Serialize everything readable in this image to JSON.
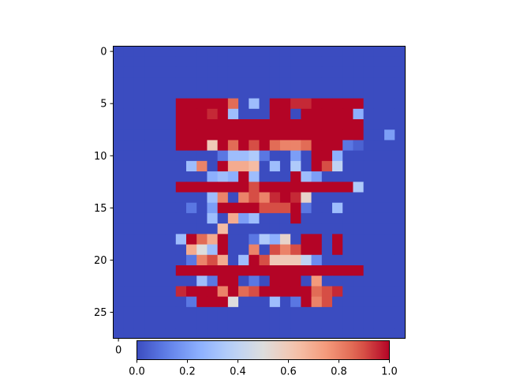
{
  "chart_data": [
    {
      "type": "heatmap",
      "title": "",
      "xlabel": "",
      "ylabel": "",
      "rows": 28,
      "cols": 28,
      "xlim": [
        -0.5,
        27.5
      ],
      "ylim": [
        27.5,
        -0.5
      ],
      "y_ticks": [
        0,
        5,
        10,
        15,
        20,
        25
      ],
      "y_tick_labels": [
        "0",
        "5",
        "10",
        "15",
        "20",
        "25"
      ],
      "x_ticks": [
        0
      ],
      "x_tick_labels": [
        "0"
      ],
      "colormap": "coolwarm",
      "vmin": 0.0,
      "vmax": 1.0,
      "grid": false,
      "values": [
        [
          0,
          0,
          0,
          0,
          0,
          0,
          0,
          0,
          0,
          0,
          0,
          0,
          0,
          0,
          0,
          0,
          0,
          0,
          0,
          0,
          0,
          0,
          0,
          0,
          0,
          0,
          0,
          0
        ],
        [
          0,
          0,
          0,
          0,
          0,
          0,
          0,
          0,
          0,
          0,
          0,
          0,
          0,
          0,
          0,
          0,
          0,
          0,
          0,
          0,
          0,
          0,
          0,
          0,
          0,
          0,
          0,
          0
        ],
        [
          0,
          0,
          0,
          0,
          0,
          0,
          0,
          0,
          0,
          0,
          0,
          0,
          0,
          0,
          0,
          0,
          0,
          0,
          0,
          0,
          0,
          0,
          0,
          0,
          0,
          0,
          0,
          0
        ],
        [
          0,
          0,
          0,
          0,
          0,
          0,
          0,
          0,
          0,
          0,
          0,
          0,
          0,
          0,
          0,
          0,
          0,
          0,
          0,
          0,
          0,
          0,
          0,
          0,
          0,
          0,
          0,
          0
        ],
        [
          0,
          0,
          0,
          0,
          0,
          0,
          0,
          0,
          0,
          0,
          0,
          0,
          0,
          0,
          0,
          0,
          0,
          0,
          0,
          0,
          0,
          0,
          0,
          0,
          0,
          0,
          0,
          0
        ],
        [
          0,
          0,
          0,
          0,
          0,
          0,
          1,
          1,
          1,
          1,
          1,
          0.85,
          0,
          0.3,
          0,
          1,
          1,
          0.95,
          0.95,
          1,
          1,
          1,
          1,
          1,
          0,
          0,
          0,
          0
        ],
        [
          0,
          0,
          0,
          0,
          0,
          0,
          1,
          1,
          1,
          0.95,
          1,
          0.3,
          0,
          0,
          0,
          1,
          1,
          0,
          1,
          1,
          1,
          1,
          1,
          0.25,
          0,
          0,
          0,
          0
        ],
        [
          0,
          0,
          0,
          0,
          0,
          0,
          1,
          1,
          1,
          1,
          1,
          1,
          1,
          1,
          1,
          1,
          1,
          1,
          1,
          1,
          1,
          1,
          1,
          1,
          0,
          0,
          0,
          0
        ],
        [
          0,
          0,
          0,
          0,
          0,
          0,
          1,
          1,
          1,
          1,
          1,
          1,
          1,
          1,
          1,
          1,
          1,
          1,
          1,
          1,
          1,
          1,
          1,
          1,
          0,
          0,
          0.2,
          0
        ],
        [
          0,
          0,
          0,
          0,
          0,
          0,
          1,
          1,
          1,
          0.6,
          1,
          0.85,
          1,
          0.9,
          1,
          0.85,
          0.8,
          0.8,
          0.85,
          1,
          1,
          1,
          0.1,
          0.05,
          0,
          0,
          0,
          0
        ],
        [
          0,
          0,
          0,
          0,
          0,
          0,
          0,
          0,
          0,
          0,
          0.1,
          0.3,
          0.3,
          0.35,
          0.1,
          0,
          0,
          0.2,
          0,
          1,
          1,
          0.25,
          0,
          0,
          0,
          0,
          0,
          0
        ],
        [
          0,
          0,
          0,
          0,
          0,
          0,
          0,
          0.3,
          0.8,
          0,
          1,
          0.7,
          0.7,
          0.65,
          0,
          0.3,
          0,
          0.35,
          0,
          1,
          0.9,
          0.4,
          0,
          0,
          0,
          0,
          0,
          0
        ],
        [
          0,
          0,
          0,
          0,
          0,
          0,
          0,
          0,
          0,
          0.25,
          0.3,
          0.25,
          1,
          0.3,
          0,
          0,
          0,
          1,
          0.3,
          0.2,
          0,
          0,
          0,
          0,
          0,
          0,
          0,
          0
        ],
        [
          0,
          0,
          0,
          0,
          0,
          0,
          1,
          1,
          1,
          1,
          1,
          1,
          1,
          0.9,
          1,
          1,
          1,
          1,
          1,
          1,
          1,
          1,
          1,
          0.35,
          0,
          0,
          0,
          0
        ],
        [
          0,
          0,
          0,
          0,
          0,
          0,
          0,
          0,
          0,
          0.3,
          0.8,
          0,
          0.8,
          0.9,
          0.8,
          0.95,
          1,
          0.95,
          0.55,
          0,
          0,
          0,
          0,
          0,
          0,
          0,
          0,
          0
        ],
        [
          0,
          0,
          0,
          0,
          0,
          0,
          0,
          0.1,
          0,
          0.2,
          1,
          1,
          1,
          1,
          0.9,
          0.9,
          0.9,
          1,
          0.1,
          0,
          0,
          0.3,
          0,
          0,
          0,
          0,
          0,
          0
        ],
        [
          0,
          0,
          0,
          0,
          0,
          0,
          0,
          0,
          0,
          0.3,
          0,
          0.7,
          0.2,
          0.3,
          0,
          0,
          0,
          1,
          0,
          0,
          0,
          0,
          0,
          0,
          0,
          0,
          0,
          0
        ],
        [
          0,
          0,
          0,
          0,
          0,
          0,
          0,
          0,
          0,
          0,
          0.65,
          0,
          0,
          0,
          0,
          0,
          0,
          0,
          0,
          0,
          0,
          0,
          0,
          0,
          0,
          0,
          0,
          0
        ],
        [
          0,
          0,
          0,
          0,
          0,
          0,
          0.3,
          1,
          0.85,
          0.7,
          1,
          0,
          0,
          0.1,
          0.35,
          0.25,
          0.55,
          0,
          1,
          1,
          0,
          1,
          0,
          0,
          0,
          0,
          0,
          0
        ],
        [
          0,
          0,
          0,
          0,
          0,
          0,
          0,
          0.7,
          0.5,
          0.3,
          1,
          0,
          0,
          0.8,
          0,
          0.9,
          0.8,
          0.9,
          1,
          1,
          0,
          1,
          0,
          0,
          0,
          0,
          0,
          0
        ],
        [
          0,
          0,
          0,
          0,
          0,
          0,
          0,
          0.1,
          0.8,
          0.9,
          0.7,
          0,
          0.3,
          1,
          0.9,
          0.6,
          0.6,
          0.6,
          0.4,
          0.15,
          0,
          0,
          0,
          0,
          0,
          0,
          0,
          0
        ],
        [
          0,
          0,
          0,
          0,
          0,
          0,
          1,
          1,
          1,
          1,
          1,
          1,
          1,
          1,
          1,
          1,
          1,
          1,
          1,
          1,
          1,
          1,
          1,
          1,
          0,
          0,
          0,
          0
        ],
        [
          0,
          0,
          0,
          0,
          0,
          0,
          0,
          0,
          0.3,
          0.1,
          1,
          1,
          0,
          0.1,
          0,
          1,
          1,
          1,
          0,
          0.75,
          0,
          0,
          0,
          0,
          0,
          0,
          0,
          0
        ],
        [
          0,
          0,
          0,
          0,
          0,
          0,
          0.95,
          1,
          1,
          1,
          0.8,
          1,
          0.85,
          0.9,
          1,
          1,
          1,
          1,
          1,
          0.85,
          0.9,
          0.95,
          0,
          0,
          0,
          0,
          0,
          0
        ],
        [
          0,
          0,
          0,
          0,
          0,
          0,
          0,
          0.1,
          1,
          1,
          1,
          0.5,
          0,
          0,
          0,
          0.3,
          0,
          0.1,
          1,
          0.8,
          0.9,
          0,
          0,
          0,
          0,
          0,
          0,
          0
        ],
        [
          0,
          0,
          0,
          0,
          0,
          0,
          0,
          0,
          0,
          0,
          0,
          0,
          0,
          0,
          0,
          0,
          0,
          0,
          0,
          0,
          0,
          0,
          0,
          0,
          0,
          0,
          0,
          0
        ],
        [
          0,
          0,
          0,
          0,
          0,
          0,
          0,
          0,
          0,
          0,
          0,
          0,
          0,
          0,
          0,
          0,
          0,
          0,
          0,
          0,
          0,
          0,
          0,
          0,
          0,
          0,
          0,
          0
        ],
        [
          0,
          0,
          0,
          0,
          0,
          0,
          0,
          0,
          0,
          0,
          0,
          0,
          0,
          0,
          0,
          0,
          0,
          0,
          0,
          0,
          0,
          0,
          0,
          0,
          0,
          0,
          0,
          0
        ]
      ]
    },
    {
      "type": "colorbar",
      "orientation": "horizontal",
      "colormap": "coolwarm",
      "range": [
        0.0,
        1.0
      ],
      "ticks": [
        0.0,
        0.2,
        0.4,
        0.6,
        0.8,
        1.0
      ],
      "tick_labels": [
        "0.0",
        "0.2",
        "0.4",
        "0.6",
        "0.8",
        "1.0"
      ]
    }
  ]
}
